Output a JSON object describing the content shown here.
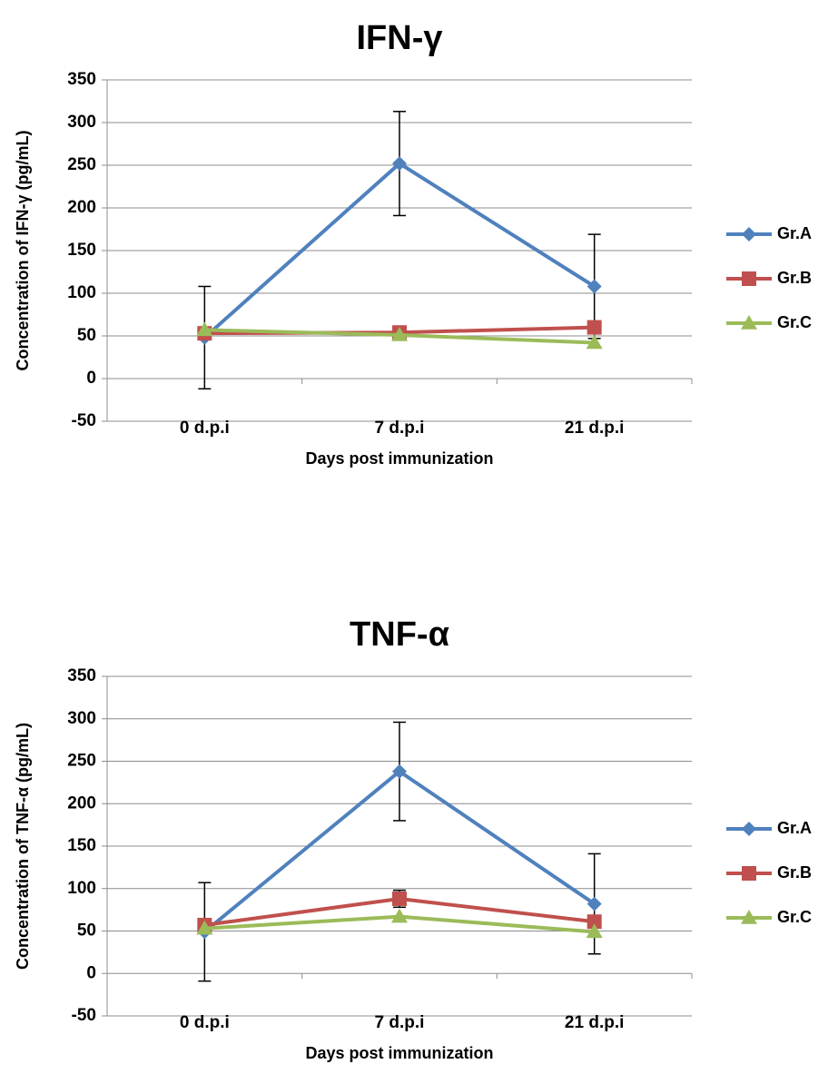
{
  "chart_data": [
    {
      "type": "line",
      "title": "IFN-γ",
      "xlabel": "Days post immunization",
      "ylabel": "Concentration of IFN-γ (pg/mL)",
      "categories": [
        "0 d.p.i",
        "7 d.p.i",
        "21 d.p.i"
      ],
      "ylim": [
        -50,
        350
      ],
      "yticks": [
        -50,
        0,
        50,
        100,
        150,
        200,
        250,
        300,
        350
      ],
      "grid": true,
      "legend_position": "right",
      "series": [
        {
          "name": "Gr.A",
          "color": "#4f81bd",
          "marker": "diamond",
          "values": [
            48,
            252,
            108
          ],
          "errors": [
            60,
            61,
            61
          ]
        },
        {
          "name": "Gr.B",
          "color": "#c0504d",
          "marker": "square",
          "values": [
            53,
            54,
            60
          ],
          "errors": [
            0,
            0,
            0
          ]
        },
        {
          "name": "Gr.C",
          "color": "#9bbb59",
          "marker": "triangle",
          "values": [
            57,
            51,
            42
          ],
          "errors": [
            0,
            0,
            0
          ]
        }
      ]
    },
    {
      "type": "line",
      "title": "TNF-α",
      "xlabel": "Days post immunization",
      "ylabel": "Concentration of TNF-α (pg/mL)",
      "categories": [
        "0 d.p.i",
        "7 d.p.i",
        "21 d.p.i"
      ],
      "ylim": [
        -50,
        350
      ],
      "yticks": [
        -50,
        0,
        50,
        100,
        150,
        200,
        250,
        300,
        350
      ],
      "grid": true,
      "legend_position": "right",
      "series": [
        {
          "name": "Gr.A",
          "color": "#4f81bd",
          "marker": "diamond",
          "values": [
            49,
            238,
            82
          ],
          "errors": [
            58,
            58,
            59
          ]
        },
        {
          "name": "Gr.B",
          "color": "#c0504d",
          "marker": "square",
          "values": [
            57,
            88,
            61
          ],
          "errors": [
            0,
            10,
            0
          ]
        },
        {
          "name": "Gr.C",
          "color": "#9bbb59",
          "marker": "triangle",
          "values": [
            53,
            67,
            49
          ],
          "errors": [
            0,
            0,
            0
          ]
        }
      ]
    }
  ]
}
